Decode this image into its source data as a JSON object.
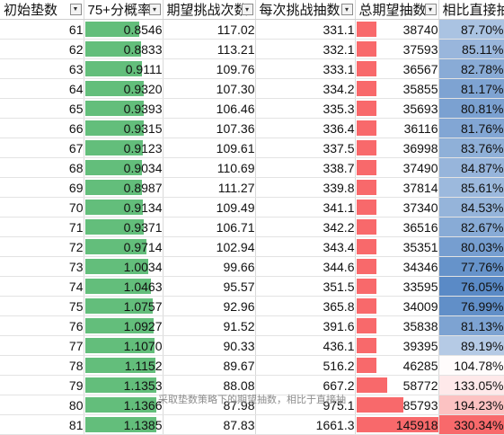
{
  "headers": [
    "初始垫数",
    "75+分概率",
    "期望挑战次数",
    "每次挑战抽数",
    "总期望抽数",
    "相比直接抽"
  ],
  "filter_icons": [
    "filter-active-icon",
    "dropdown-arrow-icon",
    "dropdown-arrow-icon",
    "dropdown-arrow-icon",
    "dropdown-arrow-icon",
    "dropdown-arrow-icon"
  ],
  "colors": {
    "green_bar": "#63be7b",
    "red_bar": "#f8696b",
    "blue_scale_low": "#ffffff",
    "blue_scale_high": "#5a8ac6",
    "red_scale_high": "#f8696b"
  },
  "prob_scale_max": 1.14,
  "total_scale_max": 145918,
  "rows": [
    {
      "pad": "61",
      "prob": "0.8546",
      "prob_v": 0.8546,
      "exp": "117.02",
      "per": "331.1",
      "total": "38740",
      "total_v": 38740,
      "ratio": "87.70%",
      "ratio_v": 87.7
    },
    {
      "pad": "62",
      "prob": "0.8833",
      "prob_v": 0.8833,
      "exp": "113.21",
      "per": "332.1",
      "total": "37593",
      "total_v": 37593,
      "ratio": "85.11%",
      "ratio_v": 85.11
    },
    {
      "pad": "63",
      "prob": "0.9111",
      "prob_v": 0.9111,
      "exp": "109.76",
      "per": "333.1",
      "total": "36567",
      "total_v": 36567,
      "ratio": "82.78%",
      "ratio_v": 82.78
    },
    {
      "pad": "64",
      "prob": "0.9320",
      "prob_v": 0.932,
      "exp": "107.30",
      "per": "334.2",
      "total": "35855",
      "total_v": 35855,
      "ratio": "81.17%",
      "ratio_v": 81.17
    },
    {
      "pad": "65",
      "prob": "0.9393",
      "prob_v": 0.9393,
      "exp": "106.46",
      "per": "335.3",
      "total": "35693",
      "total_v": 35693,
      "ratio": "80.81%",
      "ratio_v": 80.81
    },
    {
      "pad": "66",
      "prob": "0.9315",
      "prob_v": 0.9315,
      "exp": "107.36",
      "per": "336.4",
      "total": "36116",
      "total_v": 36116,
      "ratio": "81.76%",
      "ratio_v": 81.76
    },
    {
      "pad": "67",
      "prob": "0.9123",
      "prob_v": 0.9123,
      "exp": "109.61",
      "per": "337.5",
      "total": "36998",
      "total_v": 36998,
      "ratio": "83.76%",
      "ratio_v": 83.76
    },
    {
      "pad": "68",
      "prob": "0.9034",
      "prob_v": 0.9034,
      "exp": "110.69",
      "per": "338.7",
      "total": "37490",
      "total_v": 37490,
      "ratio": "84.87%",
      "ratio_v": 84.87
    },
    {
      "pad": "69",
      "prob": "0.8987",
      "prob_v": 0.8987,
      "exp": "111.27",
      "per": "339.8",
      "total": "37814",
      "total_v": 37814,
      "ratio": "85.61%",
      "ratio_v": 85.61
    },
    {
      "pad": "70",
      "prob": "0.9134",
      "prob_v": 0.9134,
      "exp": "109.49",
      "per": "341.1",
      "total": "37340",
      "total_v": 37340,
      "ratio": "84.53%",
      "ratio_v": 84.53
    },
    {
      "pad": "71",
      "prob": "0.9371",
      "prob_v": 0.9371,
      "exp": "106.71",
      "per": "342.2",
      "total": "36516",
      "total_v": 36516,
      "ratio": "82.67%",
      "ratio_v": 82.67
    },
    {
      "pad": "72",
      "prob": "0.9714",
      "prob_v": 0.9714,
      "exp": "102.94",
      "per": "343.4",
      "total": "35351",
      "total_v": 35351,
      "ratio": "80.03%",
      "ratio_v": 80.03
    },
    {
      "pad": "73",
      "prob": "1.0034",
      "prob_v": 1.0034,
      "exp": "99.66",
      "per": "344.6",
      "total": "34346",
      "total_v": 34346,
      "ratio": "77.76%",
      "ratio_v": 77.76
    },
    {
      "pad": "74",
      "prob": "1.0463",
      "prob_v": 1.0463,
      "exp": "95.57",
      "per": "351.5",
      "total": "33595",
      "total_v": 33595,
      "ratio": "76.05%",
      "ratio_v": 76.05
    },
    {
      "pad": "75",
      "prob": "1.0757",
      "prob_v": 1.0757,
      "exp": "92.96",
      "per": "365.8",
      "total": "34009",
      "total_v": 34009,
      "ratio": "76.99%",
      "ratio_v": 76.99
    },
    {
      "pad": "76",
      "prob": "1.0927",
      "prob_v": 1.0927,
      "exp": "91.52",
      "per": "391.6",
      "total": "35838",
      "total_v": 35838,
      "ratio": "81.13%",
      "ratio_v": 81.13
    },
    {
      "pad": "77",
      "prob": "1.1070",
      "prob_v": 1.107,
      "exp": "90.33",
      "per": "436.1",
      "total": "39395",
      "total_v": 39395,
      "ratio": "89.19%",
      "ratio_v": 89.19
    },
    {
      "pad": "78",
      "prob": "1.1152",
      "prob_v": 1.1152,
      "exp": "89.67",
      "per": "516.2",
      "total": "46285",
      "total_v": 46285,
      "ratio": "104.78%",
      "ratio_v": 104.78
    },
    {
      "pad": "79",
      "prob": "1.1353",
      "prob_v": 1.1353,
      "exp": "88.08",
      "per": "667.2",
      "total": "58772",
      "total_v": 58772,
      "ratio": "133.05%",
      "ratio_v": 133.05
    },
    {
      "pad": "80",
      "prob": "1.1366",
      "prob_v": 1.1366,
      "exp": "87.98",
      "per": "975.1",
      "total": "85793",
      "total_v": 85793,
      "ratio": "194.23%",
      "ratio_v": 194.23
    },
    {
      "pad": "81",
      "prob": "1.1385",
      "prob_v": 1.1385,
      "exp": "87.83",
      "per": "1661.3",
      "total": "145918",
      "total_v": 145918,
      "ratio": "330.34%",
      "ratio_v": 330.34
    }
  ],
  "caption": "采取垫数策略下的期望抽数，相比于直接抽"
}
